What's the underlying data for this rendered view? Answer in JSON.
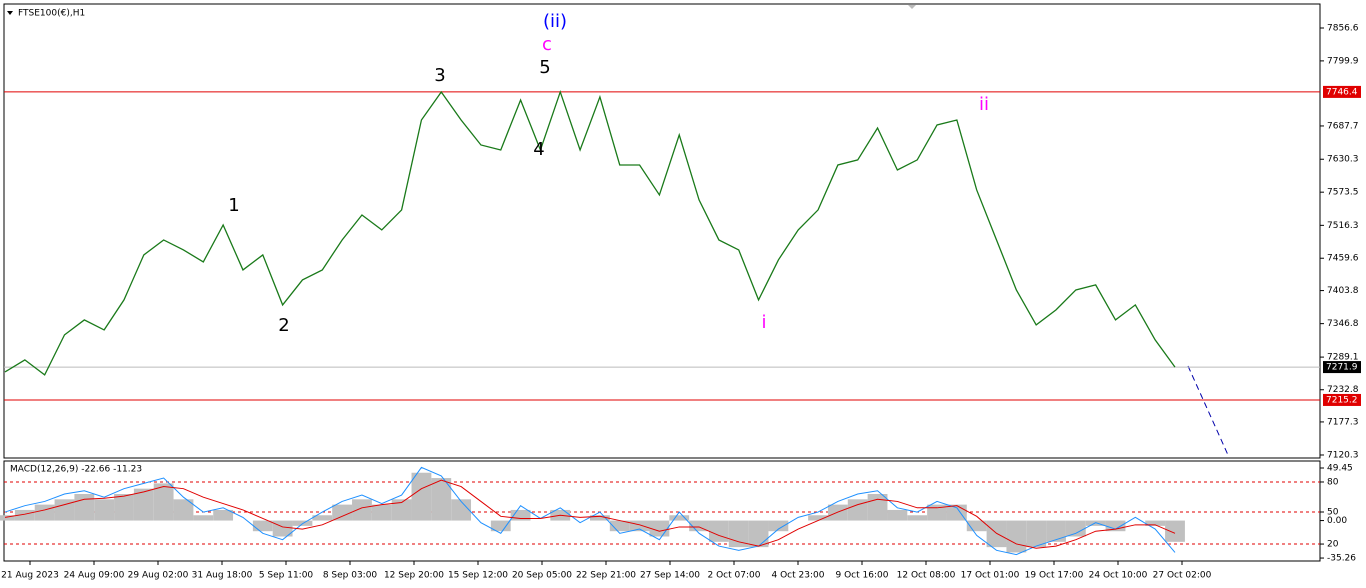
{
  "chart_data": [
    {
      "type": "line",
      "title": "FTSE100(€),H1",
      "series": [
        {
          "name": "FTSE100(€),H1",
          "color": "#1a7a1a",
          "values": [
            7263.6,
            7284.3,
            7258.4,
            7327.4,
            7353.2,
            7336,
            7387.7,
            7465.3,
            7491.1,
            7473.9,
            7453.2,
            7517,
            7439.4,
            7465.3,
            7379.1,
            7422.2,
            7439.4,
            7491.1,
            7534.2,
            7508.4,
            7542.9,
            7698,
            7746.3,
            7698,
            7654.9,
            7646.3,
            7732.5,
            7646.3,
            7746.3,
            7646.3,
            7737.7,
            7620.4,
            7620.4,
            7568.7,
            7672.2,
            7560.1,
            7491.1,
            7473.9,
            7387.7,
            7456.7,
            7508.4,
            7542.9,
            7620.4,
            7629.1,
            7684.2,
            7611.8,
            7629.1,
            7689.4,
            7698,
            7577.3,
            7491.1,
            7404.9,
            7344.6,
            7370.5,
            7404.9,
            7413.6,
            7353.2,
            7379.1,
            7318.7,
            7271.9
          ]
        }
      ],
      "xlabels": [
        "21 Aug 2023",
        "24 Aug 09:00",
        "29 Aug 02:00",
        "31 Aug 18:00",
        "5 Sep 11:00",
        "8 Sep 03:00",
        "12 Sep 20:00",
        "15 Sep 12:00",
        "20 Sep 05:00",
        "22 Sep 21:00",
        "27 Sep 14:00",
        "2 Oct 07:00",
        "4 Oct 23:00",
        "9 Oct 16:00",
        "12 Oct 08:00",
        "17 Oct 01:00",
        "19 Oct 17:00",
        "24 Oct 10:00",
        "27 Oct 02:00"
      ],
      "ylim": [
        7115.1,
        7898
      ],
      "yticks": [
        7856.6,
        7799.9,
        7687.7,
        7630.3,
        7573.5,
        7516.3,
        7459.6,
        7403.8,
        7346.8,
        7289.1,
        7232.8,
        7177.3,
        7120.3
      ],
      "levels": [
        {
          "value": 7746.4,
          "color": "#e00000"
        },
        {
          "value": 7215.2,
          "color": "#e00000"
        },
        {
          "value": 7271.9,
          "color": "#000000",
          "current": true
        }
      ],
      "annotations": [
        {
          "text": "(ii)",
          "color": "#0000ff"
        },
        {
          "text": "c",
          "color": "#ff00ff"
        },
        {
          "text": "5",
          "color": "#000"
        },
        {
          "text": "3",
          "color": "#000"
        },
        {
          "text": "4",
          "color": "#000"
        },
        {
          "text": "1",
          "color": "#000"
        },
        {
          "text": "2",
          "color": "#000"
        },
        {
          "text": "i",
          "color": "#ff00ff"
        },
        {
          "text": "ii",
          "color": "#ff00ff"
        }
      ]
    },
    {
      "type": "macd",
      "title": "MACD(12,26,9) -22.66 -11.23",
      "series": [
        {
          "name": "histogram",
          "color": "#c0c0c0",
          "values": [
            5,
            10,
            15,
            20,
            25,
            20,
            25,
            30,
            35,
            20,
            5,
            10,
            0,
            -10,
            -15,
            -5,
            5,
            15,
            20,
            15,
            20,
            45,
            40,
            20,
            0,
            -10,
            10,
            0,
            10,
            0,
            5,
            -10,
            -10,
            -15,
            5,
            -10,
            -20,
            -25,
            -25,
            -10,
            0,
            5,
            15,
            20,
            25,
            10,
            5,
            15,
            15,
            -10,
            -25,
            -30,
            -25,
            -20,
            -15,
            -5,
            -10,
            0,
            -5,
            -20
          ]
        },
        {
          "name": "macd",
          "color": "#1e90ff",
          "values": [
            8,
            14,
            18,
            25,
            28,
            22,
            30,
            35,
            40,
            22,
            8,
            12,
            3,
            -12,
            -18,
            -3,
            8,
            18,
            24,
            16,
            24,
            50,
            42,
            18,
            -2,
            -12,
            14,
            2,
            12,
            -2,
            8,
            -12,
            -8,
            -18,
            8,
            -12,
            -24,
            -28,
            -24,
            -8,
            3,
            8,
            18,
            25,
            28,
            12,
            8,
            18,
            12,
            -14,
            -28,
            -32,
            -24,
            -18,
            -12,
            -2,
            -8,
            3,
            -8,
            -30
          ]
        },
        {
          "name": "signal",
          "color": "#e00000",
          "values": [
            3,
            6,
            10,
            15,
            20,
            21,
            23,
            27,
            32,
            30,
            22,
            16,
            10,
            2,
            -6,
            -8,
            -4,
            4,
            12,
            15,
            17,
            30,
            38,
            32,
            18,
            4,
            2,
            2,
            5,
            3,
            4,
            0,
            -4,
            -10,
            -6,
            -6,
            -14,
            -20,
            -24,
            -18,
            -8,
            0,
            8,
            15,
            20,
            18,
            12,
            12,
            14,
            4,
            -12,
            -22,
            -26,
            -24,
            -18,
            -10,
            -8,
            -4,
            -4,
            -12
          ]
        }
      ],
      "ylim": [
        -37.1,
        55.1
      ],
      "yticks": [
        49.45,
        {
          "value": 36.3,
          "label": "80"
        },
        {
          "value": 8.05,
          "label": "50"
        },
        {
          "value": 0,
          "label": "0.00"
        },
        {
          "value": -22.1,
          "label": "20"
        },
        -35.26
      ]
    }
  ]
}
